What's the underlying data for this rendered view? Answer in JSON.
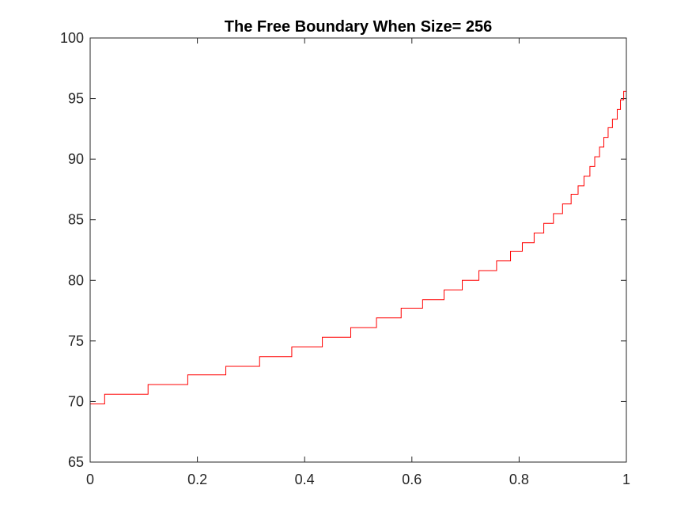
{
  "chart_data": {
    "type": "line",
    "title": "The Free Boundary When Size= 256",
    "xlabel": "",
    "ylabel": "",
    "xlim": [
      0,
      1
    ],
    "ylim": [
      65,
      100
    ],
    "xticks": [
      "0",
      "0.2",
      "0.4",
      "0.6",
      "0.8",
      "1"
    ],
    "yticks": [
      "65",
      "70",
      "75",
      "80",
      "85",
      "90",
      "95",
      "100"
    ],
    "grid": false,
    "legend": "none",
    "line_color": "#ff0000",
    "steps": [
      {
        "x": 0.0,
        "y": 69.8
      },
      {
        "x": 0.027,
        "y": 70.6
      },
      {
        "x": 0.108,
        "y": 71.4
      },
      {
        "x": 0.182,
        "y": 72.2
      },
      {
        "x": 0.253,
        "y": 72.9
      },
      {
        "x": 0.316,
        "y": 73.7
      },
      {
        "x": 0.376,
        "y": 74.5
      },
      {
        "x": 0.433,
        "y": 75.3
      },
      {
        "x": 0.486,
        "y": 76.1
      },
      {
        "x": 0.534,
        "y": 76.9
      },
      {
        "x": 0.58,
        "y": 77.7
      },
      {
        "x": 0.62,
        "y": 78.4
      },
      {
        "x": 0.66,
        "y": 79.2
      },
      {
        "x": 0.694,
        "y": 80.0
      },
      {
        "x": 0.725,
        "y": 80.8
      },
      {
        "x": 0.758,
        "y": 81.6
      },
      {
        "x": 0.784,
        "y": 82.4
      },
      {
        "x": 0.806,
        "y": 83.1
      },
      {
        "x": 0.828,
        "y": 83.9
      },
      {
        "x": 0.846,
        "y": 84.7
      },
      {
        "x": 0.864,
        "y": 85.5
      },
      {
        "x": 0.881,
        "y": 86.3
      },
      {
        "x": 0.897,
        "y": 87.1
      },
      {
        "x": 0.91,
        "y": 87.8
      },
      {
        "x": 0.921,
        "y": 88.6
      },
      {
        "x": 0.932,
        "y": 89.4
      },
      {
        "x": 0.941,
        "y": 90.2
      },
      {
        "x": 0.95,
        "y": 91.0
      },
      {
        "x": 0.958,
        "y": 91.8
      },
      {
        "x": 0.966,
        "y": 92.6
      },
      {
        "x": 0.974,
        "y": 93.3
      },
      {
        "x": 0.983,
        "y": 94.1
      },
      {
        "x": 0.989,
        "y": 94.9
      },
      {
        "x": 0.995,
        "y": 95.6
      },
      {
        "x": 1.0,
        "y": 95.6
      }
    ]
  }
}
